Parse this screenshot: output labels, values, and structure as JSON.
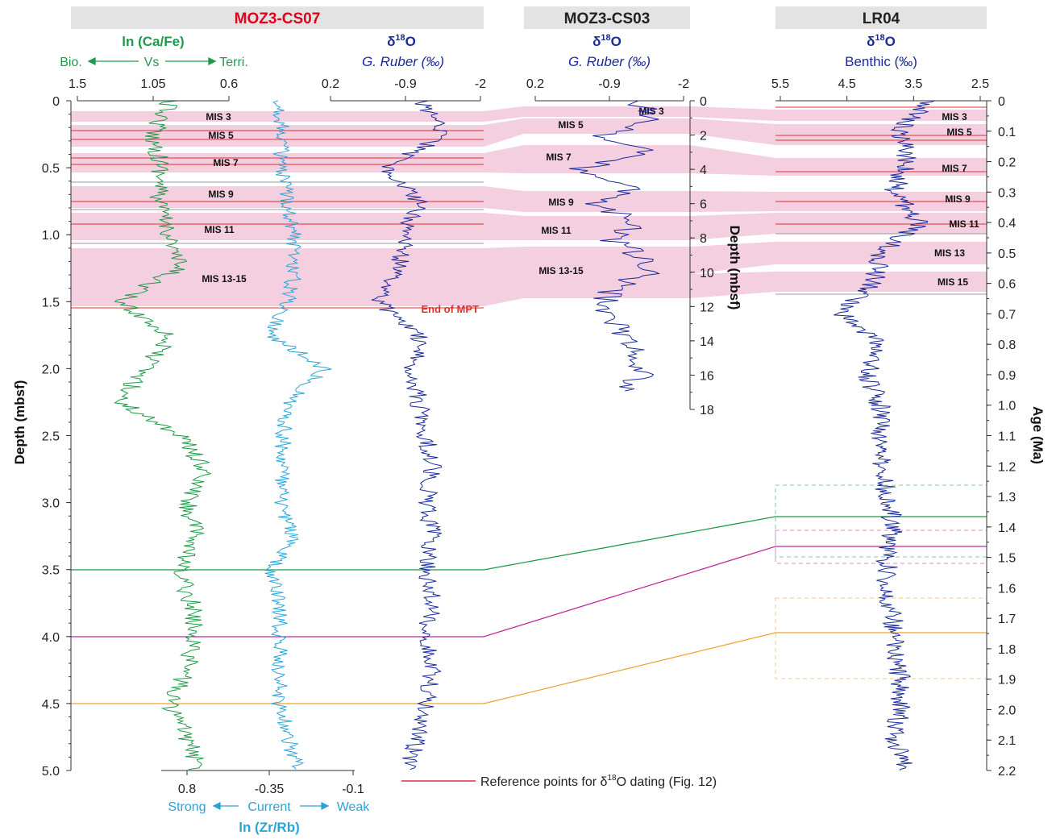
{
  "panels": [
    {
      "id": "cs07",
      "title": "MOZ3-CS07",
      "title_color": "#e0001b"
    },
    {
      "id": "cs03",
      "title": "MOZ3-CS03",
      "title_color": "#222222"
    },
    {
      "id": "lr04",
      "title": "LR04",
      "title_color": "#222222"
    }
  ],
  "cs07": {
    "cafe": {
      "label": "ln (Ca/Fe)",
      "arrow_left": "Bio.",
      "arrow_mid": "Vs",
      "arrow_right": "Terri.",
      "color": "#1f9a4a",
      "ticks": [
        "1.5",
        "1.05",
        "0.6"
      ],
      "tick_values": [
        1.5,
        1.05,
        0.6
      ]
    },
    "zrrb": {
      "label": "ln (Zr/Rb)",
      "arrow_left": "Strong",
      "arrow_mid": "Current",
      "arrow_right": "Weak",
      "color": "#2aa4d8",
      "ticks": [
        "0.8",
        "-0.35",
        "-0.1"
      ]
    },
    "d18o": {
      "label": "δ18O",
      "label_main": "δ",
      "label_sup": "18",
      "label_end": "O",
      "sublabel": "G. Ruber (‰)",
      "color": "#1a2a9a",
      "ticks": [
        "0.2",
        "-0.9",
        "-2"
      ],
      "tick_values": [
        0.2,
        -0.9,
        -2
      ]
    },
    "depth_axis": {
      "label": "Depth (mbsf)",
      "ticks": [
        "0",
        "0.5",
        "1.0",
        "1.5",
        "2.0",
        "2.5",
        "3.0",
        "3.5",
        "4.0",
        "4.5",
        "5.0"
      ],
      "tick_values": [
        0,
        0.5,
        1,
        1.5,
        2,
        2.5,
        3,
        3.5,
        4,
        4.5,
        5
      ]
    },
    "mis_labels": [
      "MIS 3",
      "MIS 5",
      "MIS 7",
      "MIS 9",
      "MIS 11",
      "MIS 13-15"
    ],
    "mpt_label": "End of MPT"
  },
  "cs03": {
    "d18o": {
      "label_main": "δ",
      "label_sup": "18",
      "label_end": "O",
      "sublabel": "G. Ruber (‰)",
      "ticks": [
        "0.2",
        "-0.9",
        "-2"
      ],
      "tick_values": [
        0.2,
        -0.9,
        -2
      ]
    },
    "depth_axis": {
      "label": "Depth (mbsf)",
      "ticks": [
        "0",
        "2",
        "4",
        "6",
        "8",
        "10",
        "12",
        "14",
        "16",
        "18"
      ],
      "tick_values": [
        0,
        2,
        4,
        6,
        8,
        10,
        12,
        14,
        16,
        18
      ]
    },
    "mis_labels": [
      "MIS 3",
      "MIS 5",
      "MIS 7",
      "MIS 9",
      "MIS 11",
      "MIS 13-15"
    ]
  },
  "lr04": {
    "d18o": {
      "label_main": "δ",
      "label_sup": "18",
      "label_end": "O",
      "sublabel": "Benthic (‰)",
      "ticks": [
        "5.5",
        "4.5",
        "3.5",
        "2.5"
      ],
      "tick_values": [
        5.5,
        4.5,
        3.5,
        2.5
      ]
    },
    "age_axis": {
      "label": "Age (Ma)",
      "ticks": [
        "0",
        "0.1",
        "0.2",
        "0.3",
        "0.4",
        "0.5",
        "0.6",
        "0.7",
        "0.8",
        "0.9",
        "1.0",
        "1.1",
        "1.2",
        "1.3",
        "1.4",
        "1.5",
        "1.6",
        "1.7",
        "1.8",
        "1.9",
        "2.0",
        "2.1",
        "2.2"
      ]
    },
    "mis_labels": [
      "MIS 3",
      "MIS 5",
      "MIS 7",
      "MIS 9",
      "MIS 11",
      "MIS 13",
      "MIS 15"
    ]
  },
  "legend": {
    "text": "Reference points for δ18O dating (Fig. 12)",
    "text_pre": "Reference points for δ",
    "text_sup": "18",
    "text_post": "O dating (Fig. 12)",
    "color": "#e03030"
  },
  "tie_lines": [
    {
      "color": "#1f9a4a",
      "cs07_depth": 3.5,
      "lr04_age": 1.36
    },
    {
      "color": "#c0289a",
      "cs07_depth": 4.0,
      "lr04_age": 1.46
    },
    {
      "color": "#f0a030",
      "cs07_depth": 4.5,
      "lr04_age": 1.75
    }
  ],
  "chart_data": [
    {
      "type": "line",
      "panel": "MOZ3-CS07",
      "y_name": "Depth (mbsf)",
      "ylim": [
        0,
        5
      ],
      "series": [
        {
          "name": "ln (Ca/Fe)",
          "x_range": [
            1.5,
            0.6
          ],
          "y_depth": [
            0,
            0.25,
            0.5,
            0.75,
            1.0,
            1.25,
            1.5,
            1.75,
            2.0,
            2.25,
            2.5,
            2.75,
            3.0,
            3.25,
            3.5,
            3.75,
            4.0,
            4.25,
            4.5,
            4.75,
            5.0
          ],
          "values": [
            0.95,
            1.05,
            1.0,
            1.02,
            0.95,
            0.9,
            1.25,
            0.95,
            1.1,
            1.25,
            0.88,
            0.75,
            0.85,
            0.8,
            0.9,
            0.82,
            0.8,
            0.85,
            0.95,
            0.85,
            0.78
          ]
        },
        {
          "name": "ln (Zr/Rb)",
          "x_range": [
            0.8,
            -0.1
          ],
          "y_depth": [
            0,
            0.25,
            0.5,
            0.75,
            1.0,
            1.25,
            1.5,
            1.75,
            2.0,
            2.25,
            2.5,
            2.75,
            3.0,
            3.25,
            3.5,
            3.75,
            4.0,
            4.25,
            4.5,
            4.75,
            5.0
          ],
          "values": [
            0.3,
            0.28,
            0.3,
            0.25,
            0.22,
            0.22,
            0.25,
            0.35,
            0.05,
            0.25,
            0.28,
            0.28,
            0.3,
            0.22,
            0.35,
            0.3,
            0.3,
            0.3,
            0.3,
            0.25,
            0.2
          ]
        },
        {
          "name": "δ18O G. Ruber (‰)",
          "x_range": [
            0.2,
            -2
          ],
          "y_depth": [
            0,
            0.25,
            0.5,
            0.75,
            1.0,
            1.25,
            1.5,
            1.75,
            2.0,
            2.25,
            2.5,
            2.75,
            3.0,
            3.25,
            3.5,
            3.75,
            4.0,
            4.25,
            4.5,
            4.75,
            5.0
          ],
          "values": [
            -1.1,
            -1.5,
            -0.6,
            -1.1,
            -0.9,
            -0.8,
            -0.5,
            -1.1,
            -1.0,
            -1.1,
            -1.2,
            -1.3,
            -1.2,
            -1.3,
            -1.2,
            -1.3,
            -1.2,
            -1.3,
            -1.2,
            -1.1,
            -0.9
          ]
        }
      ]
    },
    {
      "type": "line",
      "panel": "MOZ3-CS03",
      "y_name": "Depth (mbsf)",
      "ylim": [
        0,
        18
      ],
      "series": [
        {
          "name": "δ18O G. Ruber (‰)",
          "x_range": [
            0.2,
            -2
          ],
          "y_depth": [
            0,
            1,
            2,
            3,
            4,
            5,
            6,
            7,
            8,
            9,
            10,
            11,
            12,
            13,
            14,
            15,
            16,
            17
          ],
          "values": [
            -1.2,
            -1.6,
            -0.8,
            -1.5,
            -0.4,
            -1.3,
            -0.6,
            -1.4,
            -0.9,
            -1.3,
            -1.5,
            -0.9,
            -0.8,
            -1.0,
            -1.2,
            -1.3,
            -1.4,
            -1.0
          ]
        }
      ]
    },
    {
      "type": "line",
      "panel": "LR04",
      "y_name": "Age (Ma)",
      "ylim": [
        0,
        2.2
      ],
      "series": [
        {
          "name": "δ18O Benthic (‰)",
          "x_range": [
            5.5,
            2.5
          ],
          "y_age": [
            0,
            0.1,
            0.2,
            0.3,
            0.4,
            0.5,
            0.6,
            0.7,
            0.8,
            0.9,
            1.0,
            1.1,
            1.2,
            1.3,
            1.4,
            1.5,
            1.6,
            1.7,
            1.8,
            1.9,
            2.0,
            2.1,
            2.2
          ],
          "values": [
            3.3,
            3.7,
            3.6,
            3.8,
            3.4,
            4.0,
            4.1,
            4.6,
            4.0,
            4.2,
            4.0,
            4.0,
            4.0,
            3.9,
            3.8,
            3.9,
            3.9,
            3.8,
            3.8,
            3.7,
            3.7,
            3.8,
            3.6
          ]
        }
      ]
    }
  ]
}
